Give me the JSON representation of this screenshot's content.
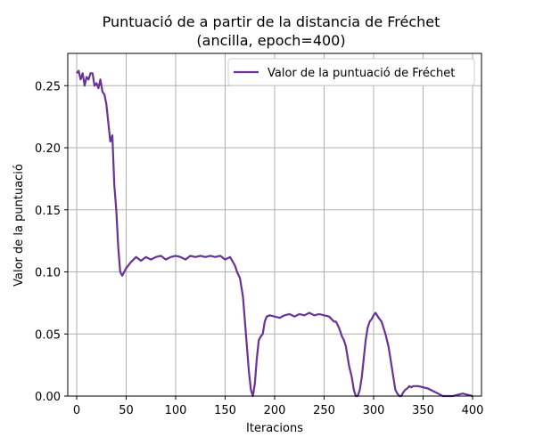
{
  "chart_data": {
    "type": "line",
    "title": "Puntuació de a partir de la distancia de Fréchet",
    "subtitle": "(ancilla, epoch=400)",
    "xlabel": "Iteracions",
    "ylabel": "Valor de la puntuació",
    "xlim": [
      -9,
      409
    ],
    "ylim": [
      0,
      0.276
    ],
    "xticks": [
      0,
      50,
      100,
      150,
      200,
      250,
      300,
      350,
      400
    ],
    "yticks": [
      0.0,
      0.05,
      0.1,
      0.15,
      0.2,
      0.25
    ],
    "xtick_labels": [
      "0",
      "50",
      "100",
      "150",
      "200",
      "250",
      "300",
      "350",
      "400"
    ],
    "ytick_labels": [
      "0.00",
      "0.05",
      "0.10",
      "0.15",
      "0.20",
      "0.25"
    ],
    "grid": true,
    "legend_position": "top-right",
    "series": [
      {
        "name": "Valor de la puntuació de Fréchet",
        "color": "#663399",
        "x": [
          0,
          2,
          4,
          6,
          8,
          10,
          12,
          14,
          16,
          18,
          20,
          22,
          24,
          26,
          28,
          30,
          32,
          34,
          36,
          38,
          40,
          42,
          44,
          46,
          48,
          50,
          55,
          60,
          65,
          70,
          75,
          80,
          85,
          90,
          95,
          100,
          105,
          110,
          115,
          120,
          125,
          130,
          135,
          140,
          145,
          150,
          155,
          160,
          162,
          165,
          168,
          170,
          172,
          174,
          176,
          178,
          180,
          182,
          184,
          186,
          188,
          190,
          192,
          195,
          200,
          205,
          210,
          215,
          220,
          225,
          230,
          235,
          240,
          245,
          250,
          255,
          260,
          262,
          265,
          268,
          270,
          272,
          275,
          278,
          280,
          282,
          284,
          286,
          288,
          290,
          292,
          294,
          296,
          298,
          300,
          302,
          305,
          308,
          310,
          312,
          315,
          318,
          320,
          322,
          324,
          326,
          328,
          330,
          332,
          334,
          336,
          338,
          340,
          345,
          350,
          355,
          360,
          365,
          370,
          375,
          380,
          385,
          390,
          395,
          400
        ],
        "y": [
          0.26,
          0.262,
          0.255,
          0.26,
          0.25,
          0.257,
          0.255,
          0.26,
          0.26,
          0.25,
          0.252,
          0.248,
          0.255,
          0.245,
          0.243,
          0.235,
          0.22,
          0.205,
          0.21,
          0.17,
          0.15,
          0.12,
          0.1,
          0.097,
          0.1,
          0.103,
          0.108,
          0.112,
          0.109,
          0.112,
          0.11,
          0.112,
          0.113,
          0.11,
          0.112,
          0.113,
          0.112,
          0.11,
          0.113,
          0.112,
          0.113,
          0.112,
          0.113,
          0.112,
          0.113,
          0.11,
          0.112,
          0.105,
          0.1,
          0.095,
          0.08,
          0.06,
          0.04,
          0.02,
          0.005,
          0.0,
          0.01,
          0.03,
          0.045,
          0.048,
          0.05,
          0.06,
          0.064,
          0.065,
          0.064,
          0.063,
          0.065,
          0.066,
          0.064,
          0.066,
          0.065,
          0.067,
          0.065,
          0.066,
          0.065,
          0.064,
          0.06,
          0.06,
          0.055,
          0.048,
          0.045,
          0.04,
          0.025,
          0.015,
          0.005,
          0.0,
          0.0,
          0.005,
          0.015,
          0.03,
          0.045,
          0.055,
          0.06,
          0.062,
          0.065,
          0.067,
          0.063,
          0.06,
          0.055,
          0.05,
          0.04,
          0.025,
          0.015,
          0.005,
          0.002,
          0.0,
          0.0,
          0.003,
          0.005,
          0.006,
          0.008,
          0.007,
          0.008,
          0.008,
          0.007,
          0.006,
          0.004,
          0.002,
          0.0,
          0.0,
          0.0,
          0.001,
          0.002,
          0.001,
          0.0
        ]
      }
    ]
  }
}
